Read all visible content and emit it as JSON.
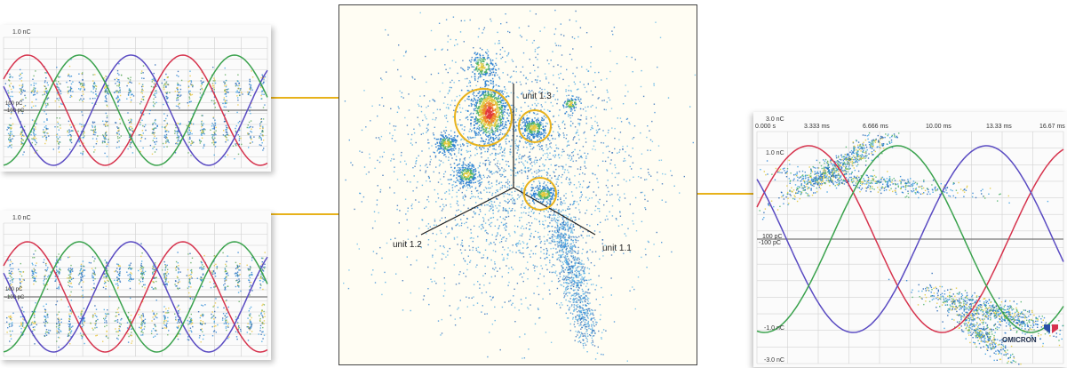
{
  "chart_data": [
    {
      "type": "scatter",
      "name": "phase-resolved-pd-top-left",
      "title": "",
      "y_tick_labels": [
        "1.0 nC",
        "100 pC",
        "-100 pC"
      ],
      "series": [
        {
          "name": "",
          "color": "#d6334d"
        },
        {
          "name": "",
          "color": "#5a4bc2"
        },
        {
          "name": "",
          "color": "#3aa24d"
        }
      ]
    },
    {
      "type": "scatter",
      "name": "phase-resolved-pd-bottom-left",
      "title": "",
      "y_tick_labels": [
        "1.0 nC",
        "100 pC",
        "-100 pC"
      ],
      "series": [
        {
          "name": "",
          "color": "#d6334d"
        },
        {
          "name": "",
          "color": "#5a4bc2"
        },
        {
          "name": "",
          "color": "#3aa24d"
        }
      ]
    },
    {
      "type": "scatter",
      "name": "3PARD-star-diagram",
      "title": "",
      "axes_labels": [
        "unit 1.3",
        "unit 1.2",
        "unit 1.1"
      ],
      "clusters_highlighted": 3
    },
    {
      "type": "scatter",
      "name": "phase-resolved-pd-right",
      "title": "",
      "x_tick_labels": [
        "0.000 s",
        "3.333 ms",
        "6.666 ms",
        "10.00 ms",
        "13.33 ms",
        "16.67 ms"
      ],
      "y_tick_labels": [
        "3.0 nC",
        "1.0 nC",
        "100 pC",
        "-100 pC",
        "-1.0 nC",
        "-3.0 nC"
      ],
      "series": [
        {
          "name": "",
          "color": "#d6334d"
        },
        {
          "name": "",
          "color": "#5a4bc2"
        },
        {
          "name": "",
          "color": "#3aa24d"
        }
      ],
      "logo": "OMICRON"
    }
  ],
  "colors": {
    "connector": "#e7b21b",
    "red_phase": "#d6334d",
    "blue_phase": "#5a4bc2",
    "green_phase": "#3aa24d",
    "dots": "#2a7fd1"
  }
}
